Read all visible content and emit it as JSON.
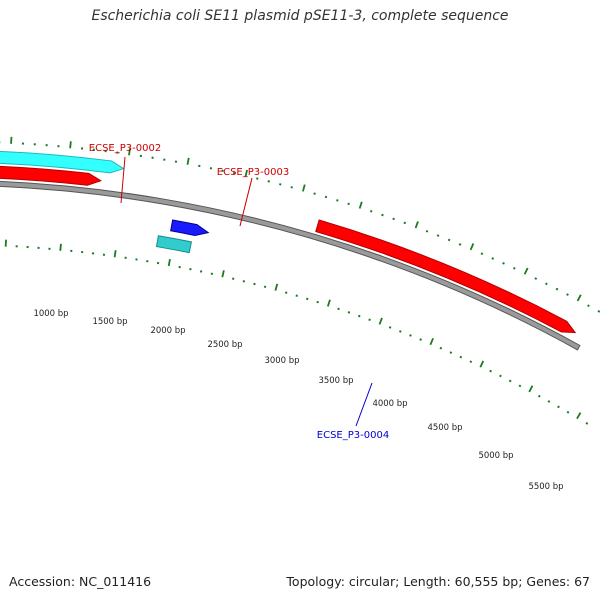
{
  "header": {
    "title": "Escherichia coli SE11 plasmid pSE11-3, complete sequence"
  },
  "colors": {
    "ruler_ticks": "#1e7a1e",
    "backbone_fill": "#9a9a9a",
    "backbone_outline": "#555555",
    "feature_red": "#ff0000",
    "feature_red_dark": "#b30000",
    "feature_cyan": "#33ffff",
    "feature_cyan_dark": "#1fb8b8",
    "feature_blue": "#1a1aff",
    "feature_blue_dark": "#00008c",
    "feature_teal": "#33cccc",
    "feature_teal_dark": "#168a8a",
    "label_red": "#cc0000",
    "label_blue": "#0000cc"
  },
  "map": {
    "topology": "circular",
    "length_bp": 60555,
    "scale_labels": [
      "1000 bp",
      "1500 bp",
      "2000 bp",
      "2500 bp",
      "3000 bp",
      "3500 bp",
      "4000 bp",
      "4500 bp",
      "5000 bp",
      "5500 bp"
    ],
    "labeled_features": [
      {
        "name": "ECSE_P3-0002",
        "color": "red"
      },
      {
        "name": "ECSE_P3-0003",
        "color": "red"
      },
      {
        "name": "ECSE_P3-0004",
        "color": "blue"
      }
    ]
  },
  "footer": {
    "accession": "Accession: NC_011416",
    "topology": "Topology: circular; Length: 60,555 bp; Genes: 67"
  }
}
